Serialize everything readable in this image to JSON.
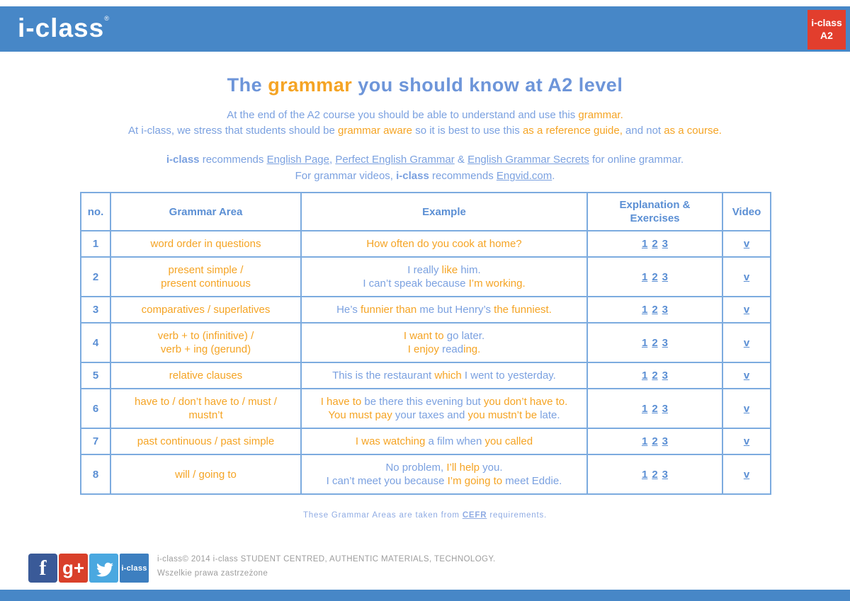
{
  "brand": {
    "logo_text": "i-class",
    "logo_mark": "®",
    "badge_line1": "i-class",
    "badge_line2": "A2"
  },
  "colors": {
    "header_blue": "#4787c7",
    "badge_red": "#e23e2d",
    "body_blue": "#7ba1e0",
    "accent_orange": "#f5a424",
    "link_blue": "#5b8fd4",
    "table_border_blue": "#7cabdf",
    "footer_gray": "#9d9d9d",
    "facebook_blue": "#3a5a98",
    "googleplus_red": "#d9402a",
    "twitter_blue": "#4aa8e0",
    "iclass_tile_blue": "#3d7fc0"
  },
  "title": {
    "segments": [
      {
        "t": "The ",
        "c": "b"
      },
      {
        "t": "grammar",
        "c": "o"
      },
      {
        "t": " you should know at A2 level",
        "c": "b"
      }
    ]
  },
  "intro": {
    "line1": [
      {
        "t": "At the end of the A2 course you should be able to understand and use this ",
        "c": "b"
      },
      {
        "t": "grammar.",
        "c": "o"
      }
    ],
    "line2": [
      {
        "t": "At i-class, we stress that students should be ",
        "c": "b"
      },
      {
        "t": "grammar aware",
        "c": "o"
      },
      {
        "t": " so it is best to use this ",
        "c": "b"
      },
      {
        "t": "as a reference guide,",
        "c": "o"
      },
      {
        "t": " and not ",
        "c": "b"
      },
      {
        "t": "as a course.",
        "c": "o"
      }
    ]
  },
  "recommend": {
    "line1": [
      {
        "t": "i-class",
        "c": "b",
        "bold": true
      },
      {
        "t": " recommends ",
        "c": "b"
      },
      {
        "t": "English Page",
        "c": "b",
        "u": true,
        "name": "link-english-page"
      },
      {
        "t": ", ",
        "c": "b"
      },
      {
        "t": "Perfect English Grammar",
        "c": "b",
        "u": true,
        "name": "link-perfect-english-grammar"
      },
      {
        "t": " & ",
        "c": "b"
      },
      {
        "t": "English Grammar Secrets",
        "c": "b",
        "u": true,
        "name": "link-english-grammar-secrets"
      },
      {
        "t": " for online grammar.",
        "c": "b"
      }
    ],
    "line2": [
      {
        "t": "For grammar videos, ",
        "c": "b"
      },
      {
        "t": "i-class",
        "c": "b",
        "bold": true
      },
      {
        "t": " recommends ",
        "c": "b"
      },
      {
        "t": "Engvid.com",
        "c": "b",
        "u": true,
        "name": "link-engvid"
      },
      {
        "t": ".",
        "c": "b"
      }
    ]
  },
  "table": {
    "headers": [
      "no.",
      "Grammar Area",
      "Example",
      "Explanation & Exercises",
      "Video"
    ],
    "rows": [
      {
        "no": "1",
        "area_lines": [
          "word order in questions"
        ],
        "example_lines": [
          [
            {
              "t": "How often do you cook at home?",
              "c": "o"
            }
          ]
        ],
        "links": [
          "1",
          "2",
          "3"
        ],
        "video": "v"
      },
      {
        "no": "2",
        "area_lines": [
          "present simple /",
          "present continuous"
        ],
        "example_lines": [
          [
            {
              "t": "I really ",
              "c": "b"
            },
            {
              "t": "like",
              "c": "o"
            },
            {
              "t": " him.",
              "c": "b"
            }
          ],
          [
            {
              "t": "I can’t speak because ",
              "c": "b"
            },
            {
              "t": "I’m working.",
              "c": "o"
            }
          ]
        ],
        "links": [
          "1",
          "2",
          "3"
        ],
        "video": "v"
      },
      {
        "no": "3",
        "area_lines": [
          "comparatives / superlatives"
        ],
        "example_lines": [
          [
            {
              "t": "He’s ",
              "c": "b"
            },
            {
              "t": "funnier than",
              "c": "o"
            },
            {
              "t": " me but Henry’s ",
              "c": "b"
            },
            {
              "t": "the funniest.",
              "c": "o"
            }
          ]
        ],
        "links": [
          "1",
          "2",
          "3"
        ],
        "video": "v"
      },
      {
        "no": "4",
        "area_lines": [
          "verb + to (infinitive) /",
          "verb + ing (gerund)"
        ],
        "example_lines": [
          [
            {
              "t": "I want to",
              "c": "o"
            },
            {
              "t": " go later.",
              "c": "b"
            }
          ],
          [
            {
              "t": "I enjoy ",
              "c": "o"
            },
            {
              "t": "read",
              "c": "b"
            },
            {
              "t": "ing.",
              "c": "o"
            }
          ]
        ],
        "links": [
          "1",
          "2",
          "3"
        ],
        "video": "v"
      },
      {
        "no": "5",
        "area_lines": [
          "relative clauses"
        ],
        "example_lines": [
          [
            {
              "t": "This is the restaurant ",
              "c": "b"
            },
            {
              "t": "which",
              "c": "o"
            },
            {
              "t": " I went to yesterday.",
              "c": "b"
            }
          ]
        ],
        "links": [
          "1",
          "2",
          "3"
        ],
        "video": "v"
      },
      {
        "no": "6",
        "area_lines": [
          "have to / don’t have to / must /",
          "mustn’t"
        ],
        "example_lines": [
          [
            {
              "t": "I have to",
              "c": "o"
            },
            {
              "t": " be there this evening but ",
              "c": "b"
            },
            {
              "t": "you don’t have to.",
              "c": "o"
            }
          ],
          [
            {
              "t": "You must pay",
              "c": "o"
            },
            {
              "t": " your taxes and ",
              "c": "b"
            },
            {
              "t": "you mustn’t be",
              "c": "o"
            },
            {
              "t": " late.",
              "c": "b"
            }
          ]
        ],
        "links": [
          "1",
          "2",
          "3"
        ],
        "video": "v"
      },
      {
        "no": "7",
        "area_lines": [
          "past continuous / past simple"
        ],
        "example_lines": [
          [
            {
              "t": "I was watching",
              "c": "o"
            },
            {
              "t": " a film when ",
              "c": "b"
            },
            {
              "t": "you called",
              "c": "o"
            }
          ]
        ],
        "links": [
          "1",
          "2",
          "3"
        ],
        "video": "v"
      },
      {
        "no": "8",
        "area_lines": [
          "will / going to"
        ],
        "example_lines": [
          [
            {
              "t": "No problem, ",
              "c": "b"
            },
            {
              "t": "I’ll help",
              "c": "o"
            },
            {
              "t": " you.",
              "c": "b"
            }
          ],
          [
            {
              "t": "I can’t meet you because ",
              "c": "b"
            },
            {
              "t": "I’m going to",
              "c": "o"
            },
            {
              "t": " meet Eddie.",
              "c": "b"
            }
          ]
        ],
        "links": [
          "1",
          "2",
          "3"
        ],
        "video": "v"
      }
    ]
  },
  "note": {
    "segments": [
      {
        "t": "These Grammar Areas are taken from ",
        "c": "b"
      },
      {
        "t": "CEFR",
        "c": "b",
        "u": true,
        "bold": true,
        "name": "link-cefr"
      },
      {
        "t": " requirements.",
        "c": "b"
      }
    ]
  },
  "footer": {
    "facebook_glyph": "f",
    "googleplus_glyph": "g+",
    "iclass_tile_label": "i-class",
    "copyright_line1": "i-class©  2014 i-class STUDENT CENTRED, AUTHENTIC MATERIALS, TECHNOLOGY.",
    "copyright_line2": "Wszelkie prawa zastrzeżone"
  }
}
